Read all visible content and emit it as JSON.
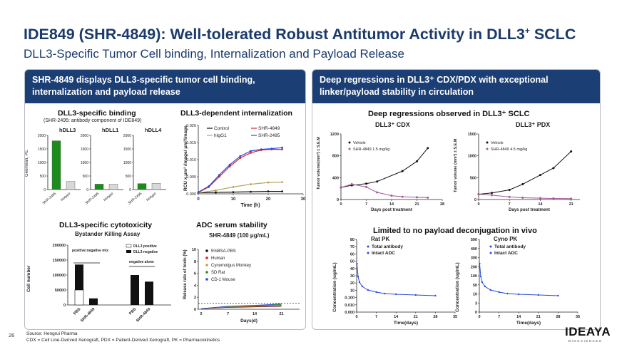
{
  "header": {
    "title": "IDE849 (SHR-4849): Well-tolerated Robust Antitumor Activity in DLL3",
    "title_sup": "+",
    "title_tail": " SCLC",
    "subtitle": "DLL3-Specific Tumor Cell binding, Internalization and Payload Release"
  },
  "left_panel": {
    "header": "SHR-4849 displays DLL3-specific tumor cell binding, internalization and payload release",
    "binding": {
      "title": "DLL3-specific binding",
      "subtitle": "(SHR-2495: antibody component of IDE849)",
      "ylabel": "Geomean, PE",
      "yticks": [
        "0",
        "500",
        "1000",
        "1500",
        "2000"
      ],
      "panels": [
        {
          "name": "hDLL3",
          "values": [
            1800,
            300
          ]
        },
        {
          "name": "hDLL1",
          "values": [
            200,
            200
          ]
        },
        {
          "name": "hDLL4",
          "values": [
            220,
            230
          ]
        }
      ],
      "categories": [
        "SHR-2495",
        "Isotype"
      ]
    },
    "internalization": {
      "title": "DLL3-dependent internalization",
      "ylabel": "RCU x μm² /image/ μm²/image",
      "xlabel": "Time (h)",
      "yticks": [
        "0.000",
        "0.005",
        "0.010",
        "0.015",
        "0.020"
      ],
      "xticks": [
        "0",
        "10",
        "20",
        "30"
      ],
      "legend": [
        "Control",
        "hIgG1",
        "SHR-4849",
        "SHR-2495"
      ]
    },
    "cytotoxicity": {
      "title": "DLL3-specific cytotoxicity",
      "subtitle": "Bystander Killing Assay",
      "ylabel": "Cell number",
      "yticks": [
        "0",
        "50000",
        "100000",
        "150000",
        "200000"
      ],
      "legend": [
        "DLL3 positive",
        "DLL3 negative"
      ],
      "annot_mix": "positive:negative mix",
      "annot_neg": "negative alone",
      "categories": [
        "PBS",
        "SHR-4849",
        "PBS",
        "SHR-4849"
      ]
    },
    "serum": {
      "title": "ADC serum stability",
      "subtitle": "SHR-4849 (100 μg/mL)",
      "ylabel": "Release rate of toxin (%)",
      "xlabel": "Days(d)",
      "yticks": [
        "0",
        "2",
        "4",
        "6",
        "8",
        "10"
      ],
      "xticks": [
        "0",
        "7",
        "14",
        "21"
      ],
      "legend": [
        "5%BSA-PBS",
        "Human",
        "Cynomolgus Monkey",
        "SD Rat",
        "CD-1 Mouse"
      ]
    }
  },
  "right_panel": {
    "header": "Deep regressions in DLL3⁺ CDX/PDX with exceptional linker/payload stability in circulation",
    "regressions_title": "Deep regressions observed in DLL3⁺ SCLC",
    "cdx": {
      "title": "DLL3⁺ CDX",
      "ylabel": "Tumor volume(mm³) ± S.E.M",
      "xlabel": "Days post treatment",
      "yticks": [
        "0",
        "400",
        "800",
        "1200"
      ],
      "xticks": [
        "0",
        "7",
        "14",
        "21",
        "28"
      ],
      "legend": [
        "Vehicle",
        "SHR-4849 1.5 mg/kg"
      ]
    },
    "pdx": {
      "title": "DLL3⁺ PDX",
      "ylabel": "Tumor volume (mm³) ± S.E.M",
      "xlabel": "Days post treatment",
      "yticks": [
        "0",
        "500",
        "1000",
        "1500"
      ],
      "xticks": [
        "0",
        "7",
        "14",
        "21"
      ],
      "legend": [
        "Vehicle",
        "SHR-4849 4.5 mg/kg"
      ]
    },
    "pk_title": "Limited to no payload deconjugation in vivo",
    "rat": {
      "title": "Rat PK",
      "ylabel": "Concentration (ug/mL)",
      "xlabel": "Time(days)",
      "yticks": [
        "0.000",
        "0.010",
        "0.100",
        "10",
        "20",
        "30",
        "40",
        "50",
        "60",
        "70",
        "80"
      ],
      "xticks": [
        "0",
        "7",
        "14",
        "21",
        "28",
        "35"
      ],
      "legend": [
        "Total antibody",
        "Intact ADC"
      ]
    },
    "cyno": {
      "title": "Cyno PK",
      "ylabel": "Concentration (ug/mL)",
      "xlabel": "Time(days)",
      "yticks": [
        "0",
        "3",
        "10",
        "50",
        "100",
        "200",
        "300",
        "400",
        "500"
      ],
      "xticks": [
        "0",
        "7",
        "14",
        "21",
        "28",
        "35"
      ],
      "legend": [
        "Total antibody",
        "Intact ADC"
      ]
    }
  },
  "footer": {
    "page": "26",
    "source": "Source: Hengrui Pharma",
    "abbrev": "CDX = Cell Line-Derived Xenograft, PDX = Patient-Derived Xenograft, PK = Pharmacokinetics",
    "logo": "IDEAYA",
    "logo_sub": "BIOSCIENCES"
  },
  "colors": {
    "navy": "#1b3f74",
    "green": "#1d8a1d",
    "red": "#e02020",
    "blue": "#2a4bd7",
    "purple": "#a05a9a"
  }
}
